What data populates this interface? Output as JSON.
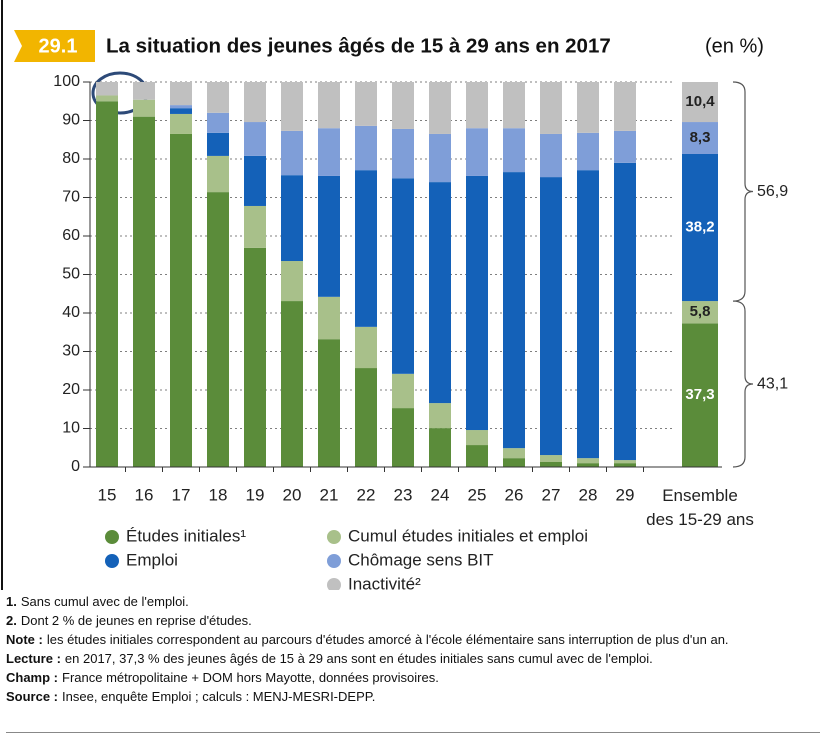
{
  "chart_data": {
    "type": "stacked_bar",
    "badge": "29.1",
    "title": "La situation des jeunes âgés de 15 à 29 ans en 2017",
    "subtitle": "(en %)",
    "categories": [
      "15",
      "16",
      "17",
      "18",
      "19",
      "20",
      "21",
      "22",
      "23",
      "24",
      "25",
      "26",
      "27",
      "28",
      "29",
      "Ensemble\ndes 15-29 ans"
    ],
    "series": [
      {
        "name": "Études initiales¹",
        "color": "#5b8c3a",
        "values": [
          95,
          91,
          86.5,
          71.4,
          56.9,
          43.1,
          33.2,
          25.7,
          15.3,
          10.1,
          5.7,
          2.3,
          1.3,
          1.0,
          1.0,
          37.3
        ],
        "value_labels": [
          null,
          null,
          null,
          null,
          null,
          null,
          null,
          null,
          null,
          null,
          null,
          null,
          null,
          null,
          null,
          "37,3"
        ]
      },
      {
        "name": "Cumul études initiales et emploi",
        "color": "#a8c08a",
        "values": [
          1.5,
          4.4,
          5.2,
          9.4,
          10.9,
          10.4,
          11.0,
          10.7,
          8.9,
          6.5,
          3.9,
          2.6,
          1.8,
          1.3,
          0.8,
          5.8
        ],
        "value_labels": [
          null,
          null,
          null,
          null,
          null,
          null,
          null,
          null,
          null,
          null,
          null,
          null,
          null,
          null,
          null,
          "5,8"
        ]
      },
      {
        "name": "Emploi",
        "color": "#1461b8",
        "values": [
          0,
          0,
          1.5,
          6.0,
          13.0,
          22.3,
          31.4,
          40.7,
          50.8,
          57.4,
          66.0,
          71.7,
          72.2,
          74.8,
          77.2,
          38.2
        ],
        "value_labels": [
          null,
          null,
          null,
          null,
          null,
          null,
          null,
          null,
          null,
          null,
          null,
          null,
          null,
          null,
          null,
          "38,2"
        ]
      },
      {
        "name": "Chômage sens BIT",
        "color": "#7f9ed8",
        "values": [
          0,
          0,
          0.8,
          5.2,
          8.8,
          11.5,
          12.4,
          11.5,
          12.8,
          12.5,
          12.4,
          11.4,
          11.2,
          9.7,
          8.3,
          8.3
        ],
        "value_labels": [
          null,
          null,
          null,
          null,
          null,
          null,
          null,
          null,
          null,
          null,
          null,
          null,
          null,
          null,
          null,
          "8,3"
        ]
      },
      {
        "name": "Inactivité²",
        "color": "#c0c0c0",
        "values": [
          3.5,
          4.6,
          6.0,
          8.0,
          10.4,
          12.7,
          12.0,
          11.4,
          12.2,
          13.5,
          12.0,
          12.0,
          13.5,
          13.2,
          12.7,
          10.4
        ],
        "value_labels": [
          null,
          null,
          null,
          null,
          null,
          null,
          null,
          null,
          null,
          null,
          null,
          null,
          null,
          null,
          null,
          "10,4"
        ]
      }
    ],
    "ylim": [
      0,
      100
    ],
    "yticks": [
      0,
      10,
      20,
      30,
      40,
      50,
      60,
      70,
      80,
      90,
      100
    ],
    "annotations": [
      {
        "text": "56,9"
      },
      {
        "text": "43,1"
      }
    ]
  },
  "notes": [
    {
      "label": "1.",
      "text": "Sans cumul avec de l'emploi."
    },
    {
      "label": "2.",
      "text": "Dont 2 % de jeunes en reprise d'études."
    },
    {
      "label": "Note :",
      "text": "les études initiales correspondent au parcours d'études amorcé à l'école élémentaire sans interruption de plus d'un an."
    },
    {
      "label": "Lecture :",
      "text": "en 2017, 37,3 % des jeunes âgés de 15 à 29 ans sont en études initiales sans cumul avec de l'emploi."
    },
    {
      "label": "Champ :",
      "text": "France métropolitaine + DOM hors Mayotte, données provisoires."
    },
    {
      "label": "Source :",
      "text": "Insee, enquête Emploi ; calculs : MENJ-MESRI-DEPP."
    }
  ]
}
